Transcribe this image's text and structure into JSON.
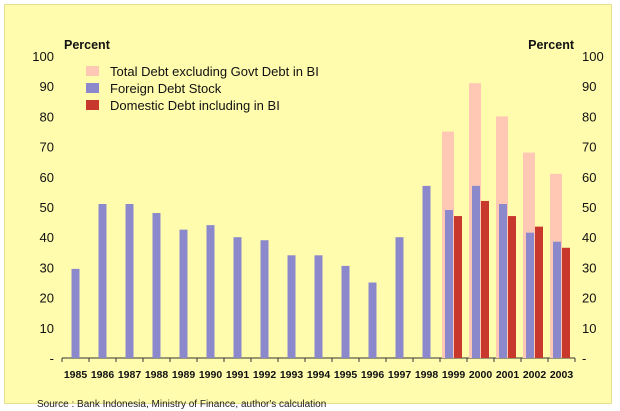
{
  "chart_data": {
    "type": "bar",
    "ylabel_left": "Percent",
    "ylabel_right": "Percent",
    "ylim": [
      0,
      100
    ],
    "y_ticks": [
      "-",
      "10",
      "20",
      "30",
      "40",
      "50",
      "60",
      "70",
      "80",
      "90",
      "100"
    ],
    "categories": [
      "1985",
      "1986",
      "1987",
      "1988",
      "1989",
      "1990",
      "1991",
      "1992",
      "1993",
      "1994",
      "1995",
      "1996",
      "1997",
      "1998",
      "1999",
      "2000",
      "2001",
      "2002",
      "2003"
    ],
    "series": [
      {
        "name": "Total Debt excluding Govt Debt in BI",
        "color": "#ffc8b4",
        "values": [
          null,
          null,
          null,
          null,
          null,
          null,
          null,
          null,
          null,
          null,
          null,
          null,
          null,
          null,
          75,
          91,
          80,
          68,
          61
        ]
      },
      {
        "name": "Foreign Debt Stock",
        "color": "#8c88cc",
        "values": [
          29.5,
          51,
          51,
          48,
          42.5,
          44,
          40,
          39,
          34,
          34,
          30.5,
          25,
          40,
          57,
          49,
          57,
          51,
          41.5,
          38.5
        ]
      },
      {
        "name": "Domestic Debt including in BI",
        "color": "#c8382c",
        "values": [
          null,
          null,
          null,
          null,
          null,
          null,
          null,
          null,
          null,
          null,
          null,
          null,
          null,
          null,
          47,
          52,
          47,
          43.5,
          36.5
        ]
      }
    ],
    "legend_position": "top-left",
    "grid": false,
    "source": "Source : Bank Indonesia, Ministry of Finance, author's calculation"
  }
}
